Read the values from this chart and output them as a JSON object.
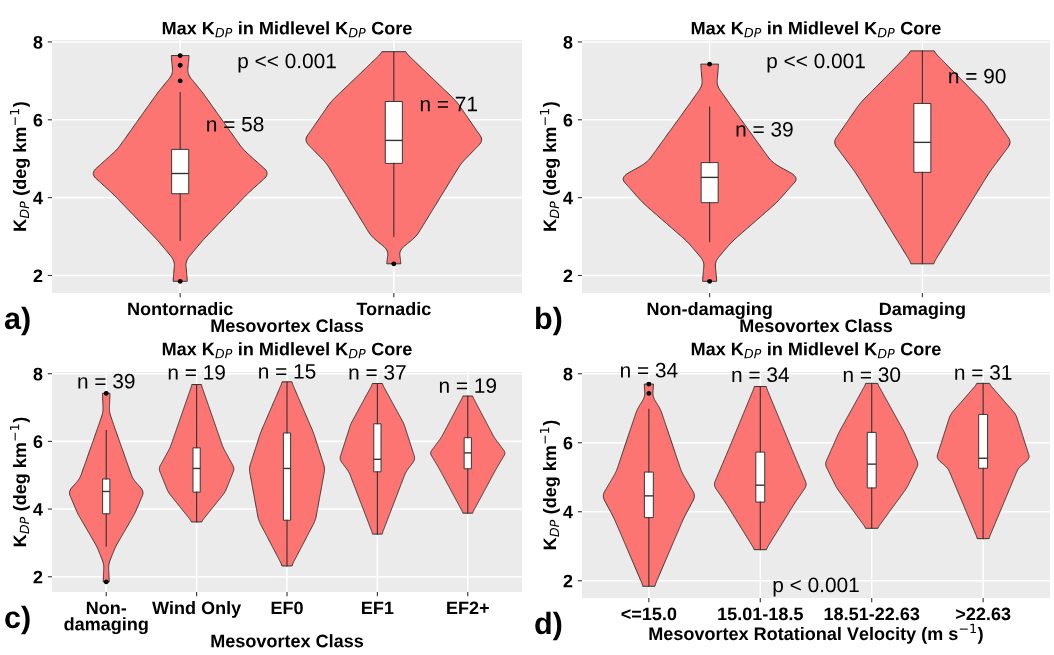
{
  "chart_data": [
    {
      "type": "box",
      "title": "Max K$_{DP}$ in Midlevel K$_{DP}$ Core",
      "xlabel": "Mesovortex Class",
      "ylabel": "K$_{DP}$ (deg km$^{−1}$)",
      "categories": [
        "Nontornadic",
        "Tornadic"
      ],
      "ylim": [
        1.55,
        8.05
      ],
      "yticks": [
        2,
        4,
        6,
        8
      ],
      "grid": true,
      "series": [
        {
          "color": "#ffffff",
          "boxes": [
            {
              "low": 2.9,
              "q1": 4.1,
              "median": 4.62,
              "q3": 5.24,
              "high": 6.7,
              "outliers": [
                7.0,
                7.4,
                7.65,
                1.85
              ]
            },
            {
              "low": 3.0,
              "q1": 4.88,
              "median": 5.47,
              "q3": 6.47,
              "high": 7.75,
              "outliers": [
                2.3
              ]
            }
          ]
        }
      ],
      "annotations": [
        "n = 58",
        "n = 71",
        "p << 0.001",
        "a)"
      ]
    },
    {
      "type": "box",
      "title": "Max K$_{DP}$ in Midlevel K$_{DP}$ Core",
      "xlabel": "Mesovortex Class",
      "ylabel": "K$_{DP}$ (deg km$^{−1}$)",
      "categories": [
        "Non-damaging",
        "Damaging"
      ],
      "ylim": [
        1.55,
        8.05
      ],
      "yticks": [
        2,
        4,
        6,
        8
      ],
      "grid": true,
      "series": [
        {
          "color": "#ffffff",
          "boxes": [
            {
              "low": 2.87,
              "q1": 3.87,
              "median": 4.52,
              "q3": 4.9,
              "high": 6.33,
              "outliers": [
                7.43,
                1.85
              ]
            },
            {
              "low": 2.3,
              "q1": 4.65,
              "median": 5.42,
              "q3": 6.42,
              "high": 7.77
            }
          ]
        }
      ],
      "annotations": [
        "n = 39",
        "n = 90",
        "p << 0.001",
        "b)"
      ]
    },
    {
      "type": "box",
      "title": "Max K$_{DP}$ in Midlevel K$_{DP}$ Core",
      "xlabel": "Mesovortex Class",
      "ylabel": "K$_{DP}$ (deg km$^{−1}$)",
      "categories": [
        "Non-\ndamaging",
        "Wind Only",
        "EF0",
        "EF1",
        "EF2+"
      ],
      "ylim": [
        1.55,
        8.05
      ],
      "yticks": [
        2,
        4,
        6,
        8
      ],
      "grid": true,
      "series": [
        {
          "color": "#ffffff",
          "boxes": [
            {
              "low": 2.9,
              "q1": 3.86,
              "median": 4.52,
              "q3": 4.89,
              "high": 6.32,
              "outliers": [
                7.42,
                1.85
              ]
            },
            {
              "low": 3.62,
              "q1": 4.5,
              "median": 5.2,
              "q3": 5.81,
              "high": 7.68
            },
            {
              "low": 2.32,
              "q1": 3.67,
              "median": 5.2,
              "q3": 6.25,
              "high": 7.76
            },
            {
              "low": 3.26,
              "q1": 5.1,
              "median": 5.47,
              "q3": 6.52,
              "high": 7.71
            },
            {
              "low": 3.88,
              "q1": 5.19,
              "median": 5.66,
              "q3": 6.11,
              "high": 7.34
            }
          ]
        }
      ],
      "annotations": [
        "n = 39",
        "n = 19",
        "n = 15",
        "n = 37",
        "n = 19",
        "c)"
      ]
    },
    {
      "type": "box",
      "title": "Max K$_{DP}$ in Midlevel K$_{DP}$ Core",
      "xlabel": "Mesovortex Rotational Velocity (m s$^{−1}$)",
      "ylabel": "K$_{DP}$ (deg km$^{−1}$)",
      "categories": [
        "<=15.0",
        "15.01-18.5",
        "18.51-22.63",
        ">22.63"
      ],
      "ylim": [
        1.5,
        8.05
      ],
      "yticks": [
        2,
        4,
        6,
        8
      ],
      "grid": true,
      "series": [
        {
          "color": "#ffffff",
          "boxes": [
            {
              "low": 1.84,
              "q1": 3.83,
              "median": 4.46,
              "q3": 5.15,
              "high": 6.97,
              "outliers": [
                7.43,
                7.7
              ]
            },
            {
              "low": 2.9,
              "q1": 4.28,
              "median": 4.77,
              "q3": 5.73,
              "high": 7.63
            },
            {
              "low": 3.52,
              "q1": 4.69,
              "median": 5.38,
              "q3": 6.3,
              "high": 7.72
            },
            {
              "low": 3.22,
              "q1": 5.26,
              "median": 5.55,
              "q3": 6.82,
              "high": 7.72
            }
          ]
        }
      ],
      "annotations": [
        "n = 34",
        "n = 34",
        "n = 30",
        "n = 31",
        "p < 0.001",
        "d)"
      ]
    }
  ]
}
